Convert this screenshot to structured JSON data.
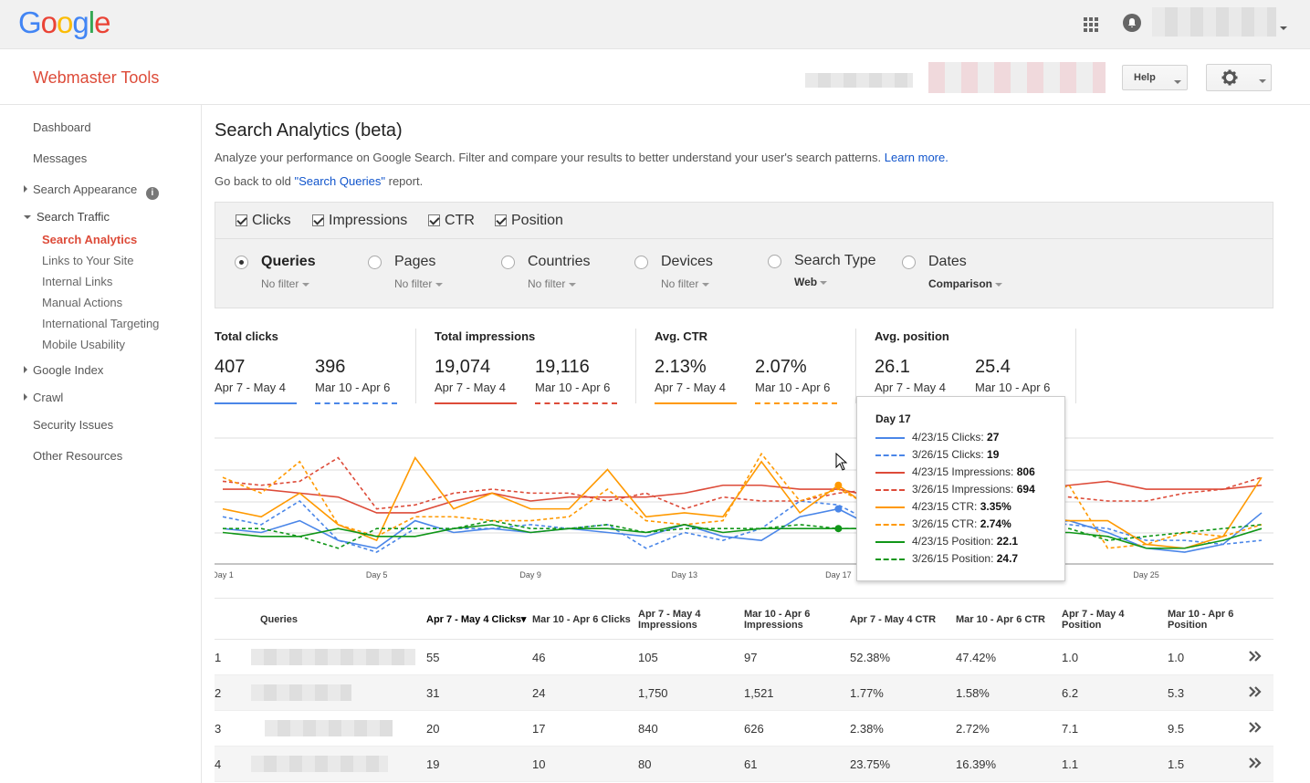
{
  "header": {
    "logo": "Google",
    "logo_colors": [
      "#4285f4",
      "#ea4335",
      "#fbbc05",
      "#4285f4",
      "#34a853",
      "#ea4335"
    ],
    "apps_icon": "apps-grid-icon",
    "notifications_icon": "bell-icon"
  },
  "subheader": {
    "product": "Webmaster Tools",
    "help_label": "Help",
    "settings_icon": "gear-icon"
  },
  "sidebar": {
    "items": [
      {
        "label": "Dashboard"
      },
      {
        "label": "Messages"
      },
      {
        "label": "Search Appearance"
      },
      {
        "label": "Search Traffic"
      },
      {
        "label": "Google Index"
      },
      {
        "label": "Crawl"
      },
      {
        "label": "Security Issues"
      },
      {
        "label": "Other Resources"
      }
    ],
    "subitems": [
      {
        "label": "Search Analytics",
        "active": true
      },
      {
        "label": "Links to Your Site"
      },
      {
        "label": "Internal Links"
      },
      {
        "label": "Manual Actions"
      },
      {
        "label": "International Targeting"
      },
      {
        "label": "Mobile Usability"
      }
    ],
    "active_color": "#dd4b39"
  },
  "page": {
    "title": "Search Analytics (beta)",
    "description": "Analyze your performance on Google Search. Filter and compare your results to better understand your user's search patterns.",
    "learn_more": "Learn more.",
    "goback_pre": "Go back to old ",
    "goback_link": "\"Search Queries\"",
    "goback_post": " report."
  },
  "metrics_checkboxes": [
    "Clicks",
    "Impressions",
    "CTR",
    "Position"
  ],
  "filters": [
    {
      "label": "Queries",
      "sub": "No filter",
      "selected": true
    },
    {
      "label": "Pages",
      "sub": "No filter"
    },
    {
      "label": "Countries",
      "sub": "No filter"
    },
    {
      "label": "Devices",
      "sub": "No filter"
    },
    {
      "label": "Search Type",
      "sub": "Web"
    },
    {
      "label": "Dates",
      "sub": "Comparison"
    }
  ],
  "summary": [
    {
      "label": "Total clicks",
      "v1": "407",
      "d1": "Apr 7 - May 4",
      "v2": "396",
      "d2": "Mar 10 - Apr 6",
      "color": "#4a86e8"
    },
    {
      "label": "Total impressions",
      "v1": "19,074",
      "d1": "Apr 7 - May 4",
      "v2": "19,116",
      "d2": "Mar 10 - Apr 6",
      "color": "#dd4b39"
    },
    {
      "label": "Avg. CTR",
      "v1": "2.13%",
      "d1": "Apr 7 - May 4",
      "v2": "2.07%",
      "d2": "Mar 10 - Apr 6",
      "color": "#ff9900"
    },
    {
      "label": "Avg. position",
      "v1": "26.1",
      "d1": "Apr 7 - May 4",
      "v2": "25.4",
      "d2": "Mar 10 - Apr 6",
      "color": "#109618"
    }
  ],
  "chart_data": {
    "type": "line",
    "x_tick_labels": [
      "Day 1",
      "Day 5",
      "Day 9",
      "Day 13",
      "Day 17",
      "Day 25"
    ],
    "x_ticks_at": [
      1,
      5,
      9,
      13,
      17,
      25
    ],
    "x_range": [
      1,
      28
    ],
    "grid": true,
    "series": [
      {
        "label_ref": "4/23/15 Clicks",
        "color": "#4a86e8",
        "dashed": false,
        "values": [
          9,
          8,
          11,
          6,
          4,
          11,
          8,
          9,
          8,
          9,
          8,
          7,
          10,
          7,
          6,
          12,
          14,
          9,
          15,
          13,
          11,
          10,
          11,
          8,
          4,
          3,
          5,
          13
        ]
      },
      {
        "label_ref": "3/26/15 Clicks",
        "color": "#4a86e8",
        "dashed": true,
        "values": [
          12,
          10,
          16,
          6,
          3,
          9,
          9,
          9,
          10,
          9,
          10,
          4,
          8,
          6,
          9,
          16,
          15,
          10,
          12,
          13,
          12,
          11,
          10,
          9,
          6,
          6,
          5,
          6
        ]
      },
      {
        "label_ref": "4/23/15 Impressions",
        "color": "#dd4b39",
        "dashed": false,
        "values": [
          19,
          19,
          18,
          17,
          13,
          13,
          16,
          18,
          16,
          17,
          17,
          17,
          18,
          20,
          20,
          19,
          19,
          17,
          20,
          21,
          20,
          19,
          20,
          21,
          19,
          19,
          19,
          20
        ]
      },
      {
        "label_ref": "3/26/15 Impressions",
        "color": "#dd4b39",
        "dashed": true,
        "values": [
          21,
          20,
          21,
          27,
          14,
          15,
          18,
          19,
          18,
          18,
          16,
          18,
          14,
          17,
          16,
          16,
          18,
          19,
          19,
          19,
          18,
          18,
          17,
          16,
          16,
          18,
          19,
          22
        ]
      },
      {
        "label_ref": "4/23/15 CTR",
        "color": "#ff9900",
        "dashed": false,
        "values": [
          14,
          12,
          18,
          10,
          6,
          27,
          14,
          18,
          14,
          14,
          24,
          12,
          13,
          12,
          26,
          13,
          20,
          13,
          14,
          13,
          12,
          12,
          11,
          11,
          5,
          4,
          7,
          22
        ]
      },
      {
        "label_ref": "3/26/15 CTR",
        "color": "#ff9900",
        "dashed": true,
        "values": [
          22,
          18,
          26,
          10,
          7,
          12,
          12,
          11,
          11,
          12,
          19,
          11,
          10,
          11,
          28,
          16,
          19,
          14,
          17,
          16,
          15,
          16,
          20,
          4,
          5,
          8,
          7,
          10
        ]
      },
      {
        "label_ref": "4/23/15 Position",
        "color": "#109618",
        "dashed": false,
        "values": [
          8,
          7,
          7,
          9,
          7,
          7,
          9,
          10,
          8,
          9,
          9,
          8,
          10,
          8,
          9,
          9,
          9,
          9,
          9,
          9,
          9,
          8,
          8,
          7,
          4,
          4,
          6,
          9
        ]
      },
      {
        "label_ref": "3/26/15 Position",
        "color": "#109618",
        "dashed": true,
        "values": [
          9,
          9,
          7,
          4,
          9,
          9,
          9,
          11,
          9,
          9,
          10,
          8,
          9,
          9,
          9,
          10,
          9,
          9,
          9,
          9,
          9,
          8,
          9,
          6,
          7,
          8,
          9,
          10
        ]
      }
    ],
    "tooltip": {
      "title": "Day 17",
      "rows": [
        {
          "label": "4/23/15 Clicks:",
          "value": "27",
          "color": "#4a86e8",
          "dashed": false
        },
        {
          "label": "3/26/15 Clicks:",
          "value": "19",
          "color": "#4a86e8",
          "dashed": true
        },
        {
          "label": "4/23/15 Impressions:",
          "value": "806",
          "color": "#dd4b39",
          "dashed": false
        },
        {
          "label": "3/26/15 Impressions:",
          "value": "694",
          "color": "#dd4b39",
          "dashed": true
        },
        {
          "label": "4/23/15 CTR:",
          "value": "3.35%",
          "color": "#ff9900",
          "dashed": false
        },
        {
          "label": "3/26/15 CTR:",
          "value": "2.74%",
          "color": "#ff9900",
          "dashed": true
        },
        {
          "label": "4/23/15 Position:",
          "value": "22.1",
          "color": "#109618",
          "dashed": false
        },
        {
          "label": "3/26/15 Position:",
          "value": "24.7",
          "color": "#109618",
          "dashed": true
        }
      ]
    }
  },
  "table": {
    "headers": [
      "Queries",
      "Apr 7 - May 4 Clicks▾",
      "Mar 10 - Apr 6 Clicks",
      "Apr 7 - May 4 Impressions",
      "Mar 10 - Apr 6 Impressions",
      "Apr 7 - May 4 CTR",
      "Mar 10 - Apr 6 CTR",
      "Apr 7 - May 4 Position",
      "Mar 10 - Apr 6 Position"
    ],
    "rows": [
      {
        "n": "1",
        "cells": [
          "55",
          "46",
          "105",
          "97",
          "52.38%",
          "47.42%",
          "1.0",
          "1.0"
        ]
      },
      {
        "n": "2",
        "cells": [
          "31",
          "24",
          "1,750",
          "1,521",
          "1.77%",
          "1.58%",
          "6.2",
          "5.3"
        ]
      },
      {
        "n": "3",
        "cells": [
          "20",
          "17",
          "840",
          "626",
          "2.38%",
          "2.72%",
          "7.1",
          "9.5"
        ]
      },
      {
        "n": "4",
        "cells": [
          "19",
          "10",
          "80",
          "61",
          "23.75%",
          "16.39%",
          "1.1",
          "1.5"
        ]
      }
    ],
    "row_action_icon": "double-chevron-right-icon"
  }
}
